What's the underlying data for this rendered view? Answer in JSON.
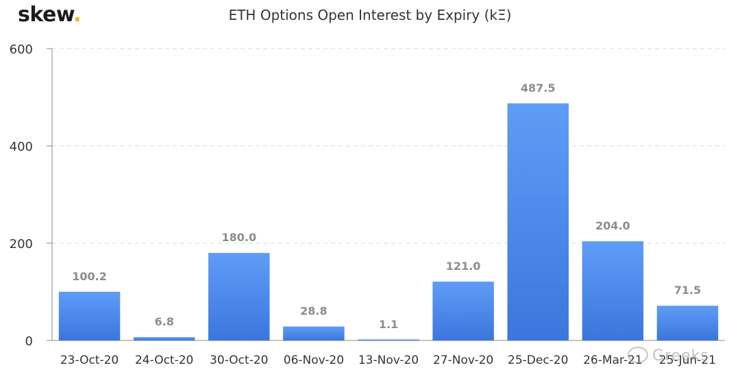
{
  "header": {
    "logo_text": "skew",
    "logo_dot": ".",
    "title": "ETH Options Open Interest by Expiry (kΞ)"
  },
  "watermark": {
    "text": "Greeks",
    "icon": "wechat-icon"
  },
  "colors": {
    "bar": "#4f8ef0",
    "bar_top": "#5f9cf6",
    "bar_bottom": "#3c76dd",
    "grid": "#d9d9d9",
    "axis": "#888888",
    "data_label": "#8c8c8c",
    "tick_label": "#333333",
    "logo_dot": "#f2b705"
  },
  "chart_data": {
    "type": "bar",
    "title": "ETH Options Open Interest by Expiry (kΞ)",
    "categories": [
      "23-Oct-20",
      "24-Oct-20",
      "30-Oct-20",
      "06-Nov-20",
      "13-Nov-20",
      "27-Nov-20",
      "25-Dec-20",
      "26-Mar-21",
      "25-Jun-21"
    ],
    "values": [
      100.2,
      6.8,
      180.0,
      28.8,
      1.1,
      121.0,
      487.5,
      204.0,
      71.5
    ],
    "data_labels": [
      "100.2",
      "6.8",
      "180.0",
      "28.8",
      "1.1",
      "121.0",
      "487.5",
      "204.0",
      "71.5"
    ],
    "ylim": [
      0,
      600
    ],
    "yticks": [
      0,
      200,
      400,
      600
    ],
    "grid": true,
    "grid_style": "dashed",
    "legend": "none"
  }
}
